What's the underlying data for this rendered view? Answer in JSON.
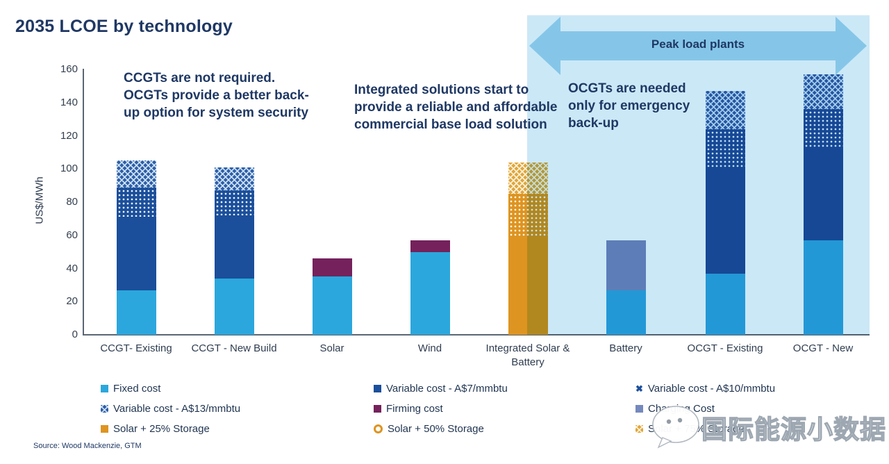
{
  "title": "2035 LCOE by technology",
  "peak_region": {
    "label": "Peak load plants"
  },
  "annotations": {
    "left": "CCGTs are not required. OCGTs provide a better back-up option for system security",
    "middle": "Integrated solutions start to provide a reliable and affordable commercial base load solution",
    "right": "OCGTs are needed only for emergency back-up"
  },
  "footer": {
    "source": "Source: Wood Mackenzie, GTM"
  },
  "watermark": {
    "text": "国际能源小数据"
  },
  "colors": {
    "title_navy": "#1F3864",
    "fixed_cost": "#2BA7DD",
    "variable_a7": "#1B4F9B",
    "variable_a13_base": "#305DA5",
    "firming": "#75215C",
    "charging": "#7589BE",
    "solar_orange": "#DE9420",
    "region_bg": "#CBE8F7",
    "arrow_blue": "#85C6E8",
    "axis_line": "#5A6672"
  },
  "chart_data": {
    "type": "bar",
    "stacked": true,
    "title": "2035 LCOE by technology",
    "xlabel": "",
    "ylabel": "US$/MWh",
    "ylim": [
      0,
      160
    ],
    "yticks": [
      0,
      20,
      40,
      60,
      80,
      100,
      120,
      140,
      160
    ],
    "grid": false,
    "legend_position": "bottom",
    "categories": [
      "CCGT- Existing",
      "CCGT - New Build",
      "Solar",
      "Wind",
      "Integrated Solar & Battery",
      "Battery",
      "OCGT - Existing",
      "OCGT - New"
    ],
    "bars": [
      {
        "category": "CCGT- Existing",
        "total": 105,
        "segments": [
          {
            "series": "Fixed cost",
            "key": "fixed",
            "value": 27
          },
          {
            "series": "Variable cost - A$7/mmbtu",
            "key": "var7",
            "value": 44
          },
          {
            "series": "Variable cost - A$10/mmbtu",
            "key": "var10",
            "value": 18
          },
          {
            "series": "Variable cost - A$13/mmbtu",
            "key": "var13",
            "value": 16
          }
        ]
      },
      {
        "category": "CCGT - New Build",
        "total": 101,
        "segments": [
          {
            "series": "Fixed cost",
            "key": "fixed",
            "value": 34
          },
          {
            "series": "Variable cost - A$7/mmbtu",
            "key": "var7",
            "value": 38
          },
          {
            "series": "Variable cost - A$10/mmbtu",
            "key": "var10",
            "value": 15
          },
          {
            "series": "Variable cost - A$13/mmbtu",
            "key": "var13",
            "value": 14
          }
        ]
      },
      {
        "category": "Solar",
        "total": 46,
        "segments": [
          {
            "series": "Fixed cost",
            "key": "fixed",
            "value": 35
          },
          {
            "series": "Firming cost",
            "key": "firming",
            "value": 11
          }
        ]
      },
      {
        "category": "Wind",
        "total": 57,
        "segments": [
          {
            "series": "Fixed cost",
            "key": "fixed",
            "value": 50
          },
          {
            "series": "Firming cost",
            "key": "firming",
            "value": 7
          }
        ]
      },
      {
        "category": "Integrated Solar & Battery",
        "total": 104,
        "segments": [
          {
            "series": "Solar + 25% Storage",
            "key": "solar25",
            "value": 59
          },
          {
            "series": "Solar + 50% Storage",
            "key": "solar50",
            "value": 26
          },
          {
            "series": "Solar + 75% Storage",
            "key": "solar75",
            "value": 19
          }
        ]
      },
      {
        "category": "Battery",
        "total": 57,
        "segments": [
          {
            "series": "Fixed cost",
            "key": "fixed",
            "value": 27
          },
          {
            "series": "Charging Cost",
            "key": "charging",
            "value": 30
          }
        ]
      },
      {
        "category": "OCGT - Existing",
        "total": 147,
        "segments": [
          {
            "series": "Fixed cost",
            "key": "fixed",
            "value": 37
          },
          {
            "series": "Variable cost - A$7/mmbtu",
            "key": "var7",
            "value": 63
          },
          {
            "series": "Variable cost - A$10/mmbtu",
            "key": "var10",
            "value": 24
          },
          {
            "series": "Variable cost - A$13/mmbtu",
            "key": "var13",
            "value": 23
          }
        ]
      },
      {
        "category": "OCGT - New",
        "total": 157,
        "segments": [
          {
            "series": "Fixed cost",
            "key": "fixed",
            "value": 57
          },
          {
            "series": "Variable cost - A$7/mmbtu",
            "key": "var7",
            "value": 56
          },
          {
            "series": "Variable cost - A$10/mmbtu",
            "key": "var10",
            "value": 23
          },
          {
            "series": "Variable cost - A$13/mmbtu",
            "key": "var13",
            "value": 21
          }
        ]
      }
    ],
    "legend": [
      [
        {
          "label": "Fixed cost",
          "key": "fixed",
          "marker": "square"
        },
        {
          "label": "Variable cost - A$13/mmbtu",
          "key": "var13",
          "marker": "square"
        },
        {
          "label": "Solar + 25% Storage",
          "key": "solar25",
          "marker": "square"
        }
      ],
      [
        {
          "label": "Variable cost - A$7/mmbtu",
          "key": "var7",
          "marker": "square"
        },
        {
          "label": "Firming cost",
          "key": "firming",
          "marker": "square"
        },
        {
          "label": "Solar + 50% Storage",
          "key": "solar50",
          "marker": "ring"
        }
      ],
      [
        {
          "label": "Variable cost - A$10/mmbtu",
          "key": "var10",
          "marker": "x"
        },
        {
          "label": "Charging Cost",
          "key": "charging",
          "marker": "square"
        },
        {
          "label": "Solar + 75% Storage",
          "key": "solar75",
          "marker": "square"
        }
      ]
    ]
  }
}
